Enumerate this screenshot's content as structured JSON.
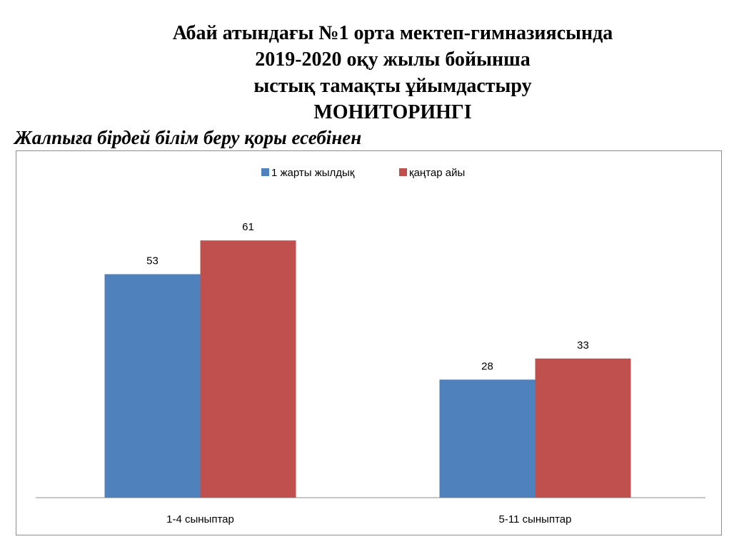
{
  "chart_data": {
    "type": "bar",
    "title": [
      "Абай атындағы №1 орта мектеп-гимназиясында",
      "2019-2020 оқу жылы бойынша",
      "ыстық тамақты ұйымдастыру",
      "МОНИТОРИНГІ"
    ],
    "subtitle": "Жалпыға бірдей білім беру қоры есебінен",
    "categories": [
      "1-4 сыныптар",
      "5-11 сыныптар"
    ],
    "series": [
      {
        "name": "1 жарты жылдық",
        "color": "#4f81bd",
        "values": [
          53,
          28
        ]
      },
      {
        "name": "қаңтар айы",
        "color": "#c0504d",
        "values": [
          61,
          33
        ]
      }
    ],
    "ylim": [
      0,
      70
    ],
    "grid": false,
    "legend": "top-center"
  }
}
